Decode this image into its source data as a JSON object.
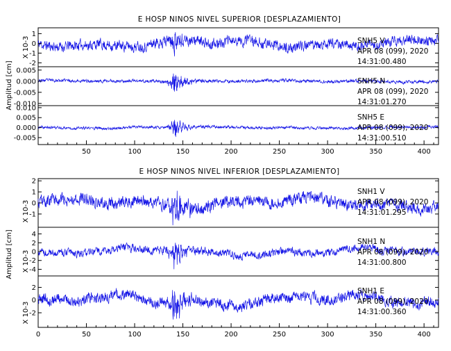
{
  "chart_data": [
    {
      "type": "line",
      "title": "E HOSP NINOS NIVEL SUPERIOR [DESPLAZAMIENTO]",
      "ylabel": "Amplitud [cm]",
      "xlim": [
        0,
        415
      ],
      "x_ticks": [
        "50",
        "100",
        "150",
        "200",
        "250",
        "300",
        "350",
        "400"
      ],
      "series": [
        {
          "unit": "X 10-3",
          "ylim": [
            -2.4,
            1.6
          ],
          "y_ticks": [
            "1",
            "0",
            "-1",
            "-2"
          ],
          "station": "SNH5 V",
          "date": "APR 08 (099), 2020",
          "time": "14:31:00.480",
          "base_amp": 0.35,
          "event_amp": 1.2,
          "drift_amp": 0.45,
          "event_time": 137,
          "seed": 11
        },
        {
          "unit": "",
          "ylim": [
            -0.011,
            0.0065
          ],
          "y_ticks": [
            "0.005",
            "0.000",
            "-0.005",
            "-0.010"
          ],
          "station": "SNH5 N",
          "date": "APR 08 (099), 2020",
          "time": "14:31:01.270",
          "base_amp": 0.0005,
          "event_amp": 0.0055,
          "drift_amp": 0.0004,
          "event_time": 137,
          "seed": 23
        },
        {
          "unit": "",
          "ylim": [
            -0.0085,
            0.011
          ],
          "y_ticks": [
            "0.010",
            "0.005",
            "0.000",
            "-0.005"
          ],
          "station": "SNH5 E",
          "date": "APR 08 (099), 2020",
          "time": "14:31:00.510",
          "base_amp": 0.0005,
          "event_amp": 0.0055,
          "drift_amp": 0.0004,
          "event_time": 137,
          "seed": 37
        }
      ]
    },
    {
      "type": "line",
      "title": "E HOSP NINOS NIVEL INFERIOR [DESPLAZAMIENTO]",
      "ylabel": "Amplitud [cm]",
      "xlim": [
        0,
        415
      ],
      "x_ticks": [
        "0",
        "50",
        "100",
        "150",
        "200",
        "250",
        "300",
        "350",
        "400"
      ],
      "series": [
        {
          "unit": "X 10-3",
          "ylim": [
            -2.2,
            2.2
          ],
          "y_ticks": [
            "2",
            "1",
            "0",
            "-1"
          ],
          "station": "SNH1 V",
          "date": "APR 08 (099), 2020",
          "time": "14:31:01.295",
          "base_amp": 0.35,
          "event_amp": 1.8,
          "drift_amp": 0.5,
          "event_time": 137,
          "seed": 53
        },
        {
          "unit": "X 10-3",
          "ylim": [
            -5.5,
            5.5
          ],
          "y_ticks": [
            "4",
            "2",
            "0",
            "-2",
            "-4"
          ],
          "station": "SNH1 N",
          "date": "APR 08 (099), 2020",
          "time": "14:31:00.800",
          "base_amp": 0.6,
          "event_amp": 4.2,
          "drift_amp": 0.8,
          "event_time": 137,
          "seed": 71
        },
        {
          "unit": "X 10-3",
          "ylim": [
            -4.3,
            3.8
          ],
          "y_ticks": [
            "2",
            "0",
            "-2"
          ],
          "station": "SNH1 E",
          "date": "APR 08 (099), 2020",
          "time": "14:31:00.360",
          "base_amp": 0.55,
          "event_amp": 3.2,
          "drift_amp": 0.9,
          "event_time": 137,
          "seed": 89
        }
      ]
    }
  ]
}
